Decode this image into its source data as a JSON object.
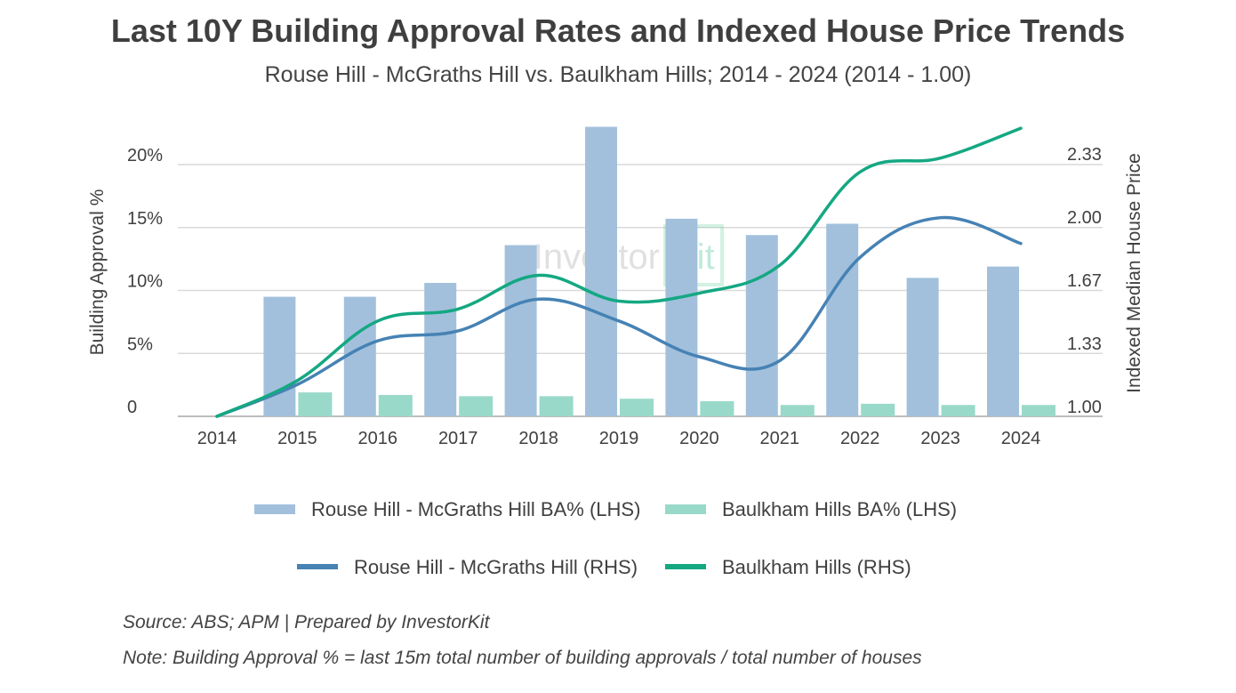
{
  "title": "Last 10Y Building Approval Rates and Indexed House Price Trends",
  "subtitle": "Rouse Hill - McGraths Hill vs. Baulkham Hills; 2014 - 2024 (2014 - 1.00)",
  "watermark": {
    "left": "Investor",
    "right": "Kit"
  },
  "footnotes": {
    "source": "Source: ABS; APM | Prepared by InvestorKit",
    "note": "Note: Building Approval % = last 15m total number of building approvals / total number of houses"
  },
  "chart_data": {
    "type": "bar+line",
    "categories": [
      "2014",
      "2015",
      "2016",
      "2017",
      "2018",
      "2019",
      "2020",
      "2021",
      "2022",
      "2023",
      "2024"
    ],
    "ylabel_left": "Building Approval %",
    "ylabel_right": "Indexed Median House Price",
    "left_axis": {
      "min": 0,
      "max": 20,
      "ticks": [
        0,
        5,
        10,
        15,
        20
      ],
      "tick_labels": [
        "0",
        "5%",
        "10%",
        "15%",
        "20%"
      ]
    },
    "right_axis": {
      "min": 1.0,
      "max": 2.33,
      "ticks": [
        1.0,
        1.33,
        1.67,
        2.0,
        2.33
      ],
      "tick_labels": [
        "1.00",
        "1.33",
        "1.67",
        "2.00",
        "2.33"
      ]
    },
    "bar_series": [
      {
        "name": "Rouse Hill - McGraths Hill BA% (LHS)",
        "color": "#a2c0dc",
        "values": [
          null,
          9.5,
          9.5,
          10.6,
          13.6,
          23.0,
          15.7,
          14.4,
          15.3,
          11.0,
          11.9
        ]
      },
      {
        "name": "Baulkham Hills BA% (LHS)",
        "color": "#99d9c9",
        "values": [
          null,
          1.9,
          1.7,
          1.6,
          1.6,
          1.4,
          1.2,
          0.9,
          1.0,
          0.9,
          0.9
        ]
      }
    ],
    "line_series": [
      {
        "name": "Rouse Hill - McGraths Hill (RHS)",
        "color": "#4682b4",
        "values": [
          1.0,
          1.16,
          1.38,
          1.43,
          1.59,
          1.48,
          1.3,
          1.28,
          1.8,
          2.0,
          1.87
        ]
      },
      {
        "name": "Baulkham Hills (RHS)",
        "color": "#14a882",
        "values": [
          1.0,
          1.18,
          1.48,
          1.54,
          1.71,
          1.58,
          1.62,
          1.76,
          2.23,
          2.3,
          2.45
        ]
      }
    ],
    "legend_position": "bottom"
  }
}
